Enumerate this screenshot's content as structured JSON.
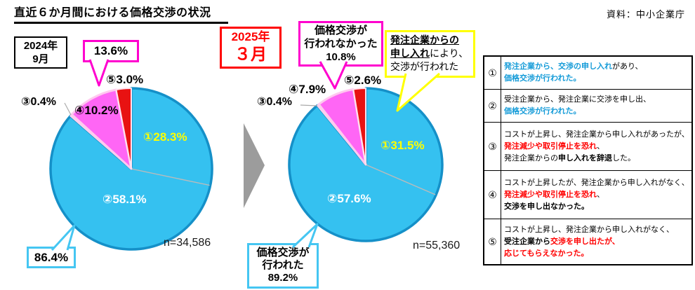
{
  "header": {
    "title": "直近６か月間における価格交渉の状況",
    "source": "資料：中小企業庁"
  },
  "periods": [
    {
      "line1": "2024年",
      "line2": "9月"
    },
    {
      "line1": "2025年",
      "line2": "３月"
    }
  ],
  "colors": {
    "slice_cyan": "#35C1F0",
    "slice_cyan_border": "#1590C8",
    "slice_pale_pink": "#FFD2EE",
    "slice_magenta": "#FF66F5",
    "slice_magenta_border": "#FFC9EF",
    "slice_red": "#E81212",
    "slice_red_border": "#FFE2EF",
    "divider": "#BBBBBB",
    "leader_gray": "#AAAAAA",
    "arrow_gray": "#9C9C9C",
    "callout_magenta": "#FF00CE",
    "callout_cyan": "#45C6F2",
    "callout_yellow": "#FFFF00",
    "label_yellow": "#FFFF00",
    "label_white": "#FFFFFF",
    "text_blue": "#149BD8",
    "text_red": "#FF0000",
    "period_red": "#FF0000"
  },
  "chart_data": [
    {
      "type": "pie",
      "period": "2024年9月",
      "n": 34586,
      "n_label": "n=34,586",
      "start_angle": "top",
      "direction": "clockwise",
      "slices": [
        {
          "id": "①",
          "value": 28.3,
          "label": "①28.3%",
          "color_key": "cyan"
        },
        {
          "id": "②",
          "value": 58.1,
          "label": "②58.1%",
          "color_key": "cyan"
        },
        {
          "id": "③",
          "value": 0.4,
          "label": "③0.4%",
          "color_key": "pale_pink"
        },
        {
          "id": "④",
          "value": 10.2,
          "label": "④10.2%",
          "color_key": "magenta"
        },
        {
          "id": "⑤",
          "value": 3.0,
          "label": "⑤3.0%",
          "color_key": "red"
        }
      ],
      "callouts": {
        "not_negotiated": "13.6%",
        "not_negotiated_pct": 13.6,
        "negotiated": "86.4%",
        "negotiated_pct": 86.4
      }
    },
    {
      "type": "pie",
      "period": "2025年3月",
      "n": 55360,
      "n_label": "n=55,360",
      "start_angle": "top",
      "direction": "clockwise",
      "slices": [
        {
          "id": "①",
          "value": 31.5,
          "label": "①31.5%",
          "color_key": "cyan"
        },
        {
          "id": "②",
          "value": 57.6,
          "label": "②57.6%",
          "color_key": "cyan"
        },
        {
          "id": "③",
          "value": 0.4,
          "label": "③0.4%",
          "color_key": "pale_pink"
        },
        {
          "id": "④",
          "value": 7.9,
          "label": "④7.9%",
          "color_key": "magenta"
        },
        {
          "id": "⑤",
          "value": 2.6,
          "label": "⑤2.6%",
          "color_key": "red"
        }
      ],
      "callouts": {
        "not_negotiated_lines": [
          "価格交渉が",
          "行われなかった",
          "10.8%"
        ],
        "not_negotiated_pct": 10.8,
        "negotiated_lines": [
          "価格交渉が",
          "行われた",
          "89.2%"
        ],
        "negotiated_pct": 89.2,
        "yellow_note_segments": [
          [
            {
              "t": "発注企業からの",
              "b": true,
              "u": true
            }
          ],
          [
            {
              "t": "申し入れ",
              "b": true,
              "u": true
            },
            {
              "t": "により、"
            }
          ],
          [
            {
              "t": "交渉が行われた"
            }
          ]
        ]
      }
    }
  ],
  "legend": {
    "rows": [
      {
        "num": "①",
        "lines": [
          [
            {
              "t": "発注企業から、交渉の申し入れ",
              "c": "blue",
              "b": true
            },
            {
              "t": "があり、"
            }
          ],
          [
            {
              "t": "価格交渉が行われた。",
              "c": "blue",
              "b": true
            }
          ]
        ]
      },
      {
        "num": "②",
        "lines": [
          [
            {
              "t": "受注企業から、発注企業に交渉を申し出、"
            }
          ],
          [
            {
              "t": "価格交渉が行われた。",
              "c": "blue",
              "b": true
            }
          ]
        ]
      },
      {
        "num": "③",
        "lines": [
          [
            {
              "t": "コストが上昇し、発注企業から申し入れがあったが、"
            }
          ],
          [
            {
              "t": "発注減少や取引停止を恐れ",
              "c": "red",
              "b": true
            },
            {
              "t": "、"
            }
          ],
          [
            {
              "t": "発注企業からの"
            },
            {
              "t": "申し入れを辞退",
              "b": true
            },
            {
              "t": "した。"
            }
          ]
        ]
      },
      {
        "num": "④",
        "lines": [
          [
            {
              "t": "コストが上昇したが、発注企業から申し入れがなく、"
            }
          ],
          [
            {
              "t": "発注減少や取引停止を恐れ",
              "c": "red",
              "b": true
            },
            {
              "t": "、"
            }
          ],
          [
            {
              "t": "交渉を申し出なかった。",
              "b": true
            }
          ]
        ]
      },
      {
        "num": "⑤",
        "lines": [
          [
            {
              "t": "コストが上昇し、発注企業から申し入れがなく、"
            }
          ],
          [
            {
              "t": "受注企業から",
              "b": true
            },
            {
              "t": "交渉を申し出たが、",
              "c": "red",
              "b": true
            }
          ],
          [
            {
              "t": "応じてもらえなかった。",
              "c": "red",
              "b": true
            }
          ]
        ]
      }
    ]
  }
}
